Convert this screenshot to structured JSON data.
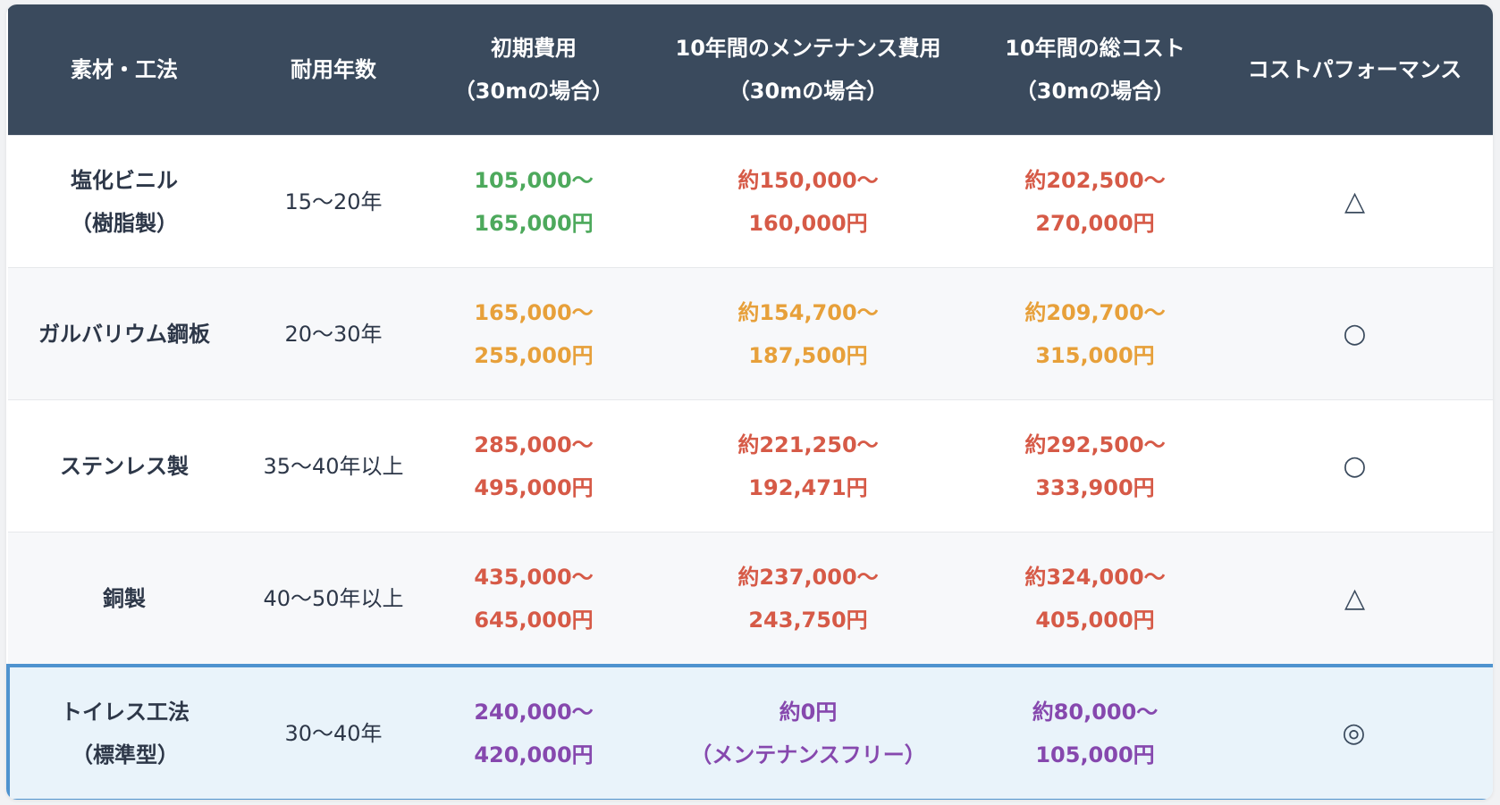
{
  "headers": [
    {
      "l1": "素材・工法",
      "l2": ""
    },
    {
      "l1": "耐用年数",
      "l2": ""
    },
    {
      "l1": "初期費用",
      "l2": "（30mの場合）"
    },
    {
      "l1": "10年間のメンテナンス費用",
      "l2": "（30mの場合）"
    },
    {
      "l1": "10年間の総コスト",
      "l2": "（30mの場合）"
    },
    {
      "l1": "コストパフォーマンス",
      "l2": ""
    }
  ],
  "rows": [
    {
      "material": [
        "塩化ビニル",
        "（樹脂製）"
      ],
      "life": "15〜20年",
      "initial": [
        "105,000〜",
        "165,000円"
      ],
      "initial_color": "green",
      "maint": [
        "約150,000〜",
        "160,000円"
      ],
      "maint_color": "red",
      "total": [
        "約202,500〜",
        "270,000円"
      ],
      "total_color": "red",
      "perf": "△"
    },
    {
      "material": [
        "ガルバリウム鋼板",
        ""
      ],
      "life": "20〜30年",
      "initial": [
        "165,000〜",
        "255,000円"
      ],
      "initial_color": "orange",
      "maint": [
        "約154,700〜",
        "187,500円"
      ],
      "maint_color": "orange",
      "total": [
        "約209,700〜",
        "315,000円"
      ],
      "total_color": "orange",
      "perf": "○"
    },
    {
      "material": [
        "ステンレス製",
        ""
      ],
      "life": "35〜40年以上",
      "initial": [
        "285,000〜",
        "495,000円"
      ],
      "initial_color": "red",
      "maint": [
        "約221,250〜",
        "192,471円"
      ],
      "maint_color": "red",
      "total": [
        "約292,500〜",
        "333,900円"
      ],
      "total_color": "red",
      "perf": "○"
    },
    {
      "material": [
        "銅製",
        ""
      ],
      "life": "40〜50年以上",
      "initial": [
        "435,000〜",
        "645,000円"
      ],
      "initial_color": "red",
      "maint": [
        "約237,000〜",
        "243,750円"
      ],
      "maint_color": "red",
      "total": [
        "約324,000〜",
        "405,000円"
      ],
      "total_color": "red",
      "perf": "△"
    },
    {
      "material": [
        "トイレス工法",
        "（標準型）"
      ],
      "life": "30〜40年",
      "initial": [
        "240,000〜",
        "420,000円"
      ],
      "initial_color": "purple",
      "maint": [
        "約0円",
        "（メンテナンスフリー）"
      ],
      "maint_color": "purple",
      "total": [
        "約80,000〜",
        "105,000円"
      ],
      "total_color": "purple",
      "perf": "◎",
      "highlighted": true
    }
  ],
  "colors": {
    "header_bg": "#3a4a5d",
    "green": "#4da95c",
    "orange": "#e7a03a",
    "red": "#d65a47",
    "purple": "#8648ae",
    "highlight_border": "#4f93cf",
    "highlight_bg": "#e9f3fa"
  }
}
